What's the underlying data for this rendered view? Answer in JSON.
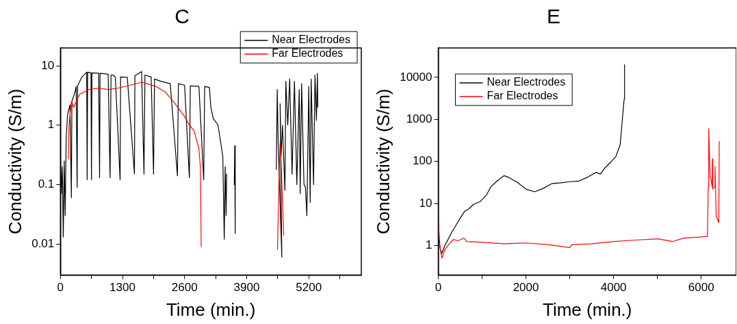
{
  "chart_data": [
    {
      "type": "line",
      "title": "C",
      "xlabel": "Time (min.)",
      "ylabel": "Conductivity (S/m)",
      "log": "y",
      "legend": "top right",
      "xlim": [
        0,
        6300
      ],
      "ylim": [
        0.003,
        20
      ],
      "xticks": [
        0,
        {
          "value": 650,
          "label": null
        },
        1300,
        {
          "value": 1950,
          "label": null
        },
        2600,
        {
          "value": 3250,
          "label": null
        },
        3900,
        {
          "value": 4550,
          "label": null
        },
        5200,
        {
          "value": 5850,
          "label": null
        }
      ],
      "yticks": [
        0.01,
        0.1,
        1,
        10
      ],
      "series": [
        {
          "name": "Near Electrodes",
          "color": "#000000",
          "x": [
            0,
            20,
            40,
            60,
            80,
            100,
            120,
            150,
            200,
            230,
            240,
            300,
            330,
            350,
            360,
            450,
            550,
            560,
            570,
            640,
            650,
            660,
            800,
            820,
            830,
            1000,
            1040,
            1060,
            1100,
            1150,
            1250,
            1260,
            1400,
            1550,
            1560,
            1700,
            1750,
            1770,
            1900,
            1950,
            1970,
            2100,
            2300,
            2450,
            2470,
            2600,
            2700,
            2720,
            2900,
            3000,
            3020,
            3120,
            3150,
            3200,
            3300,
            3400,
            3430,
            3450,
            3470,
            3480,
            3560,
            3640,
            3650,
            3660,
            3700,
            4520,
            4540,
            4560,
            4636,
            4600,
            4620,
            4650,
            4700,
            4720,
            4760,
            4800,
            4850,
            4900,
            4950,
            5000,
            5020,
            5050,
            5100,
            5130,
            5160,
            5200,
            5230,
            5250,
            5300,
            5330,
            5360,
            5380,
            5390
          ],
          "values": [
            0.3,
            0.07,
            0.2,
            0.013,
            0.25,
            0.03,
            0.6,
            1.5,
            2.2,
            0.06,
            2.5,
            3.5,
            4.5,
            0.09,
            4.6,
            6.5,
            7.8,
            0.12,
            7.8,
            7.6,
            0.12,
            7.6,
            7.5,
            0.13,
            7.5,
            7.2,
            0.13,
            7,
            7,
            6.5,
            0.12,
            6.5,
            6.4,
            0.15,
            6.8,
            8,
            0.15,
            7,
            6.5,
            0.15,
            6,
            5.5,
            5,
            0.14,
            5,
            4.7,
            0.13,
            4.6,
            4.5,
            0.12,
            4.5,
            4.3,
            2,
            1.3,
            1,
            0.3,
            0.012,
            0.2,
            0.03,
            0.15,
            null,
            0.1,
            0.45,
            0.015,
            null,
            0.18,
            4,
            0.5,
            0.006,
            2.3,
            0.3,
            1,
            0.08,
            5.5,
            1,
            6,
            0.15,
            5.5,
            0.1,
            4,
            0.07,
            5,
            0.1,
            0.09,
            0.03,
            4.5,
            0.05,
            6,
            0.1,
            7,
            1.2,
            7.5,
            2
          ]
        },
        {
          "name": "Far Electrodes",
          "color": "#ff0000",
          "x": [
            166,
            180,
            230,
            280,
            320,
            400,
            600,
            800,
            1000,
            1200,
            1500,
            1700,
            1800,
            2000,
            2200,
            2400,
            2600,
            2700,
            2800,
            2900,
            2930,
            2948,
            3000,
            4545,
            4580,
            4600,
            4620,
            4650,
            4676
          ],
          "values": [
            0.27,
            1,
            2.5,
            2,
            2.4,
            3.3,
            4,
            4.2,
            4,
            4.2,
            4.8,
            5.3,
            5,
            4.5,
            3.6,
            2.3,
            1.4,
            1,
            0.8,
            0.4,
            0.2,
            0.009,
            null,
            0.008,
            0.15,
            0.5,
            0.25,
            0.05,
            0.014
          ]
        }
      ]
    },
    {
      "type": "line",
      "title": "E",
      "xlabel": "Time (min.)",
      "ylabel": "Conductivity (S/m)",
      "log": "y",
      "legend": "top left",
      "xlim": [
        0,
        6800
      ],
      "ylim": [
        0.2,
        50000
      ],
      "xticks": [
        0,
        {
          "value": 1000,
          "label": null
        },
        2000,
        {
          "value": 3000,
          "label": null
        },
        4000,
        {
          "value": 5000,
          "label": null
        },
        6000
      ],
      "yticks": [
        1,
        10,
        100,
        1000,
        10000
      ],
      "series": [
        {
          "name": "Near Electrodes",
          "color": "#000000",
          "x": [
            0,
            50,
            80,
            150,
            300,
            400,
            500,
            600,
            700,
            800,
            950,
            1100,
            1200,
            1350,
            1500,
            1600,
            1800,
            2000,
            2200,
            2400,
            2600,
            2800,
            3000,
            3200,
            3400,
            3600,
            3700,
            3800,
            3950,
            4050,
            4150,
            4200,
            4240,
            4250
          ],
          "values": [
            1.5,
            0.8,
            0.65,
            1,
            2,
            3,
            4.5,
            6.5,
            7.5,
            9.5,
            11,
            16,
            25,
            35,
            46,
            42,
            32,
            22,
            19,
            23,
            30,
            31,
            33,
            34,
            42,
            55,
            50,
            70,
            100,
            130,
            250,
            1000,
            3000,
            20000
          ]
        },
        {
          "name": "Far Electrodes",
          "color": "#ff0000",
          "x": [
            0,
            40,
            80,
            150,
            250,
            350,
            450,
            580,
            650,
            1000,
            1500,
            2000,
            2500,
            2900,
            3000,
            3050,
            3500,
            4000,
            4500,
            5000,
            5350,
            5600,
            6000,
            6140,
            6160,
            6170,
            6200,
            6250,
            6255,
            6262,
            6310,
            6315,
            6340,
            6400,
            6410
          ],
          "values": [
            4,
            0.9,
            0.5,
            0.8,
            1.1,
            1.4,
            1.3,
            1.5,
            1.25,
            1.2,
            1.1,
            1.15,
            1.05,
            0.92,
            0.9,
            1.05,
            1.1,
            1.25,
            1.35,
            1.45,
            1.25,
            1.5,
            1.6,
            1.65,
            25,
            600,
            50,
            25,
            115,
            22,
            25,
            75,
            5,
            3.5,
            300
          ]
        }
      ]
    }
  ]
}
